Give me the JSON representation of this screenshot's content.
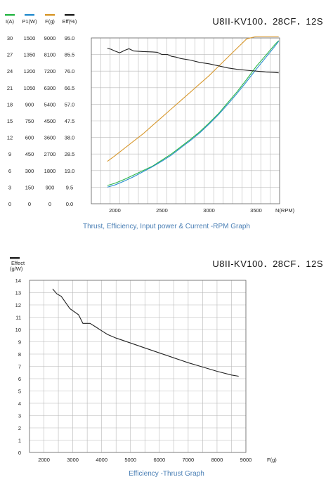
{
  "chart_data": [
    {
      "type": "line",
      "model": "U8II-KV100．28CF．12S",
      "caption": "Thrust, Efficiency, Input power & Current -RPM Graph",
      "xlabel": "N(RPM)",
      "x_ticks": [
        2000,
        2500,
        3000,
        3500
      ],
      "xlim": [
        1750,
        3750
      ],
      "grid": true,
      "legend_position": "top-left",
      "axes": [
        {
          "name": "I(A)",
          "color": "#2db84a",
          "ticks": [
            "0",
            "3",
            "6",
            "9",
            "12",
            "15",
            "18",
            "21",
            "24",
            "27",
            "30"
          ]
        },
        {
          "name": "P1(W)",
          "color": "#2b8fd0",
          "ticks": [
            "0",
            "150",
            "300",
            "450",
            "600",
            "750",
            "900",
            "1050",
            "1200",
            "1350",
            "1500"
          ]
        },
        {
          "name": "F(g)",
          "color": "#d8992f",
          "ticks": [
            "0",
            "900",
            "1800",
            "2700",
            "3600",
            "4500",
            "5400",
            "6300",
            "7200",
            "8100",
            "9000"
          ]
        },
        {
          "name": "Eff(%)",
          "color": "#222222",
          "ticks": [
            "0.0",
            "9.5",
            "19.0",
            "28.5",
            "38.0",
            "47.5",
            "57.0",
            "66.5",
            "76.0",
            "85.5",
            "95.0"
          ]
        }
      ],
      "series": [
        {
          "name": "I(A)",
          "color": "#2db84a",
          "ymax": 30,
          "x": [
            1920,
            2000,
            2100,
            2200,
            2300,
            2400,
            2500,
            2600,
            2700,
            2800,
            2900,
            3000,
            3100,
            3200,
            3300,
            3400,
            3500,
            3600,
            3700,
            3740
          ],
          "y": [
            3.3,
            3.7,
            4.4,
            5.2,
            6.0,
            6.8,
            7.9,
            9.0,
            10.3,
            11.6,
            13.0,
            14.6,
            16.3,
            18.3,
            20.3,
            22.5,
            24.8,
            26.8,
            28.8,
            29.5
          ]
        },
        {
          "name": "P1(W)",
          "color": "#2b8fd0",
          "ymax": 1500,
          "x": [
            1920,
            2000,
            2100,
            2200,
            2300,
            2400,
            2500,
            2600,
            2700,
            2800,
            2900,
            3000,
            3100,
            3200,
            3300,
            3400,
            3500,
            3600,
            3700,
            3740
          ],
          "y": [
            150,
            170,
            205,
            245,
            290,
            335,
            385,
            440,
            505,
            570,
            640,
            720,
            805,
            900,
            1000,
            1105,
            1215,
            1320,
            1425,
            1470
          ]
        },
        {
          "name": "F(g)",
          "color": "#d8992f",
          "ymax": 9000,
          "x": [
            1920,
            2000,
            2100,
            2200,
            2300,
            2400,
            2500,
            2600,
            2700,
            2800,
            2900,
            3000,
            3100,
            3200,
            3300,
            3400,
            3500,
            3600,
            3700,
            3740
          ],
          "y": [
            2300,
            2600,
            3000,
            3400,
            3800,
            4250,
            4700,
            5150,
            5600,
            6050,
            6500,
            6950,
            7450,
            7950,
            8450,
            8950,
            9450,
            9950,
            10450,
            10620
          ]
        },
        {
          "name": "Eff(%)",
          "color": "#222222",
          "ymax": 95,
          "x": [
            1920,
            1960,
            2000,
            2050,
            2080,
            2100,
            2150,
            2200,
            2300,
            2400,
            2450,
            2500,
            2560,
            2600,
            2650,
            2700,
            2800,
            2900,
            3000,
            3100,
            3200,
            3300,
            3400,
            3500,
            3600,
            3700,
            3740
          ],
          "y": [
            89.0,
            88.5,
            87.5,
            86.5,
            87.2,
            87.8,
            88.8,
            87.5,
            87.2,
            87.0,
            86.8,
            85.5,
            85.5,
            84.5,
            84.0,
            83.2,
            82.3,
            81.0,
            80.2,
            79.0,
            77.8,
            77.0,
            76.5,
            76.0,
            75.5,
            75.2,
            75.0
          ]
        }
      ]
    },
    {
      "type": "line",
      "model": "U8II-KV100．28CF．12S",
      "caption": "Efficiency -Thrust Graph",
      "ylabel": "Effect\n(g/W)",
      "ylabel_line1": "Effect",
      "ylabel_line2": "(g/W)",
      "xlabel": "F(g)",
      "x_ticks": [
        2000,
        3000,
        4000,
        5000,
        6000,
        7000,
        8000,
        9000
      ],
      "y_ticks": [
        0,
        1,
        2,
        3,
        4,
        5,
        6,
        7,
        8,
        9,
        10,
        11,
        12,
        13,
        14
      ],
      "xlim": [
        1500,
        9000
      ],
      "ylim": [
        0,
        14
      ],
      "grid": true,
      "legend_position": "top-left",
      "series": [
        {
          "name": "Effect",
          "color": "#222222",
          "x": [
            2300,
            2450,
            2600,
            2900,
            3200,
            3350,
            3600,
            3800,
            4000,
            4200,
            4500,
            5000,
            5500,
            6000,
            6500,
            7000,
            7500,
            8000,
            8500,
            8750
          ],
          "y": [
            13.3,
            12.9,
            12.7,
            11.7,
            11.2,
            10.5,
            10.5,
            10.2,
            9.9,
            9.6,
            9.3,
            8.9,
            8.5,
            8.1,
            7.7,
            7.3,
            6.95,
            6.6,
            6.3,
            6.2
          ]
        }
      ]
    }
  ]
}
